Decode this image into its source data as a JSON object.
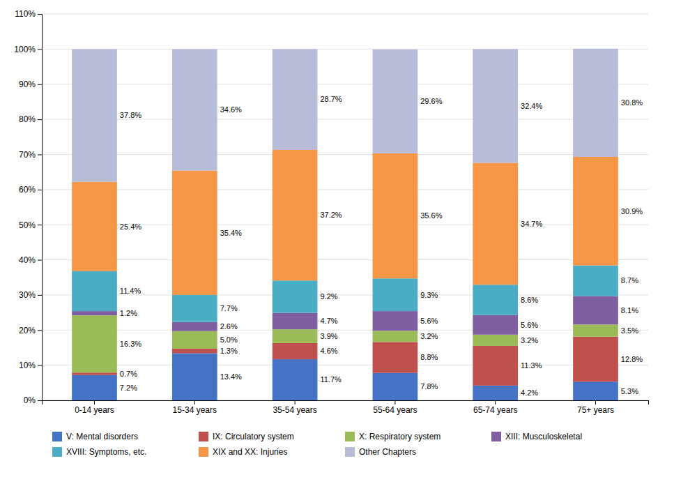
{
  "chart_data": {
    "type": "bar",
    "stacked": true,
    "data_labels": true,
    "grid": true,
    "legend": "bottom",
    "categories": [
      "0-14 years",
      "15-34 years",
      "35-54 years",
      "55-64 years",
      "65-74 years",
      "75+ years"
    ],
    "series": [
      {
        "name": "V: Mental disorders",
        "color": "#4472C4",
        "values": [
          7.2,
          13.4,
          11.7,
          7.8,
          4.2,
          5.3
        ],
        "value_labels": [
          "7.2%",
          "13.4%",
          "11.7%",
          "7.8%",
          "4.2%",
          "5.3%"
        ]
      },
      {
        "name": "IX: Circulatory system",
        "color": "#C0504D",
        "values": [
          0.7,
          1.3,
          4.6,
          8.8,
          11.3,
          12.8
        ],
        "value_labels": [
          "0.7%",
          "1.3%",
          "4.6%",
          "8.8%",
          "11.3%",
          "12.8%"
        ]
      },
      {
        "name": "X: Respiratory system",
        "color": "#9BBB59",
        "values": [
          16.3,
          5.0,
          3.9,
          3.2,
          3.2,
          3.5
        ],
        "value_labels": [
          "16.3%",
          "5.0%",
          "3.9%",
          "3.2%",
          "3.2%",
          "3.5%"
        ]
      },
      {
        "name": "XIII: Musculoskeletal",
        "color": "#7F5FA2",
        "values": [
          1.2,
          2.6,
          4.7,
          5.6,
          5.6,
          8.1
        ],
        "value_labels": [
          "1.2%",
          "2.6%",
          "4.7%",
          "5.6%",
          "5.6%",
          "8.1%"
        ]
      },
      {
        "name": "XVIII: Symptoms, etc.",
        "color": "#4BACC6",
        "values": [
          11.4,
          7.7,
          9.2,
          9.3,
          8.6,
          8.7
        ],
        "value_labels": [
          "11.4%",
          "7.7%",
          "9.2%",
          "9.3%",
          "8.6%",
          "8.7%"
        ]
      },
      {
        "name": "XIX and XX: Injuries",
        "color": "#F79646",
        "values": [
          25.4,
          35.4,
          37.2,
          35.6,
          34.7,
          30.9
        ],
        "value_labels": [
          "25.4%",
          "35.4%",
          "37.2%",
          "35.6%",
          "34.7%",
          "30.9%"
        ]
      },
      {
        "name": "Other Chapters",
        "color": "#B8BDD7",
        "values": [
          37.8,
          34.6,
          28.7,
          29.6,
          32.4,
          30.8
        ],
        "value_labels": [
          "37.8%",
          "34.6%",
          "28.7%",
          "29.6%",
          "32.4%",
          "30.8%"
        ]
      }
    ],
    "ylim": [
      0,
      110
    ],
    "yticks": [
      {
        "value": 0,
        "label": "0%"
      },
      {
        "value": 10,
        "label": "10%"
      },
      {
        "value": 20,
        "label": "20%"
      },
      {
        "value": 30,
        "label": "30%"
      },
      {
        "value": 40,
        "label": "40%"
      },
      {
        "value": 50,
        "label": "50%"
      },
      {
        "value": 60,
        "label": "60%"
      },
      {
        "value": 70,
        "label": "70%"
      },
      {
        "value": 80,
        "label": "80%"
      },
      {
        "value": 90,
        "label": "90%"
      },
      {
        "value": 100,
        "label": "100%"
      },
      {
        "value": 110,
        "label": "110%"
      }
    ]
  }
}
